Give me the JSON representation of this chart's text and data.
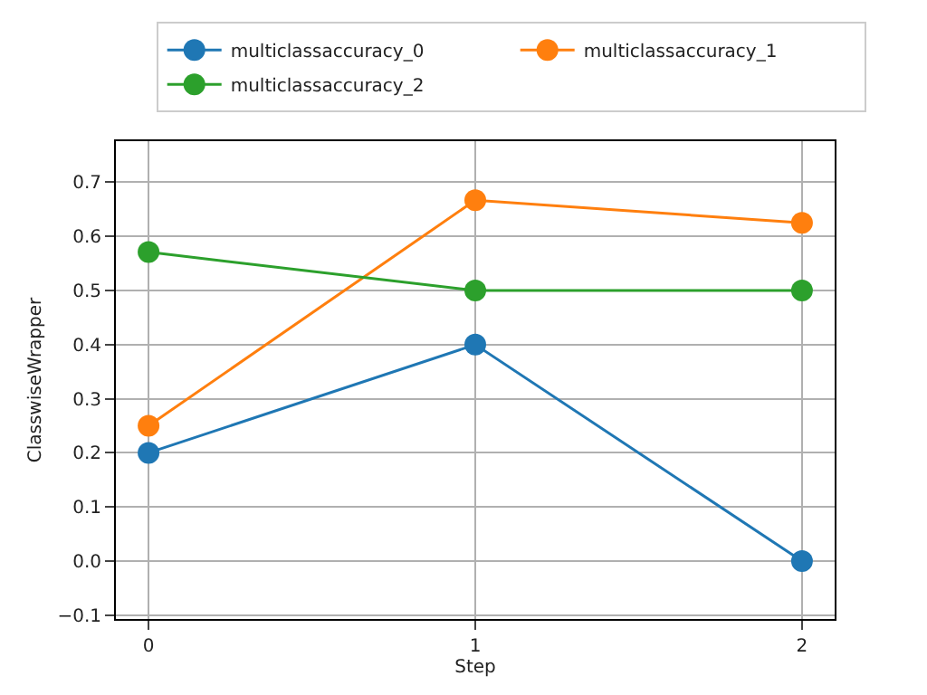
{
  "chart_data": {
    "type": "line",
    "xlabel": "Step",
    "ylabel": "ClasswiseWrapper",
    "x": [
      0,
      1,
      2
    ],
    "series": [
      {
        "name": "multiclassaccuracy_0",
        "color": "#1f77b4",
        "values": [
          0.2,
          0.4,
          0.0
        ]
      },
      {
        "name": "multiclassaccuracy_1",
        "color": "#ff7f0e",
        "values": [
          0.25,
          0.667,
          0.625
        ]
      },
      {
        "name": "multiclassaccuracy_2",
        "color": "#2ca02c",
        "values": [
          0.571,
          0.5,
          0.5
        ]
      }
    ],
    "xlim": [
      -0.1,
      2.1
    ],
    "xticks": [
      0,
      1,
      2
    ],
    "ylim": [
      -0.107,
      0.776
    ],
    "yticks": [
      {
        "value": -0.1,
        "label": "−0.1"
      },
      {
        "value": 0,
        "label": "0.0"
      },
      0.1,
      0.2,
      0.3,
      0.4,
      0.5,
      0.6,
      0.7
    ],
    "grid": true,
    "legend": "top",
    "marker": "circle",
    "line_style": "solid"
  }
}
